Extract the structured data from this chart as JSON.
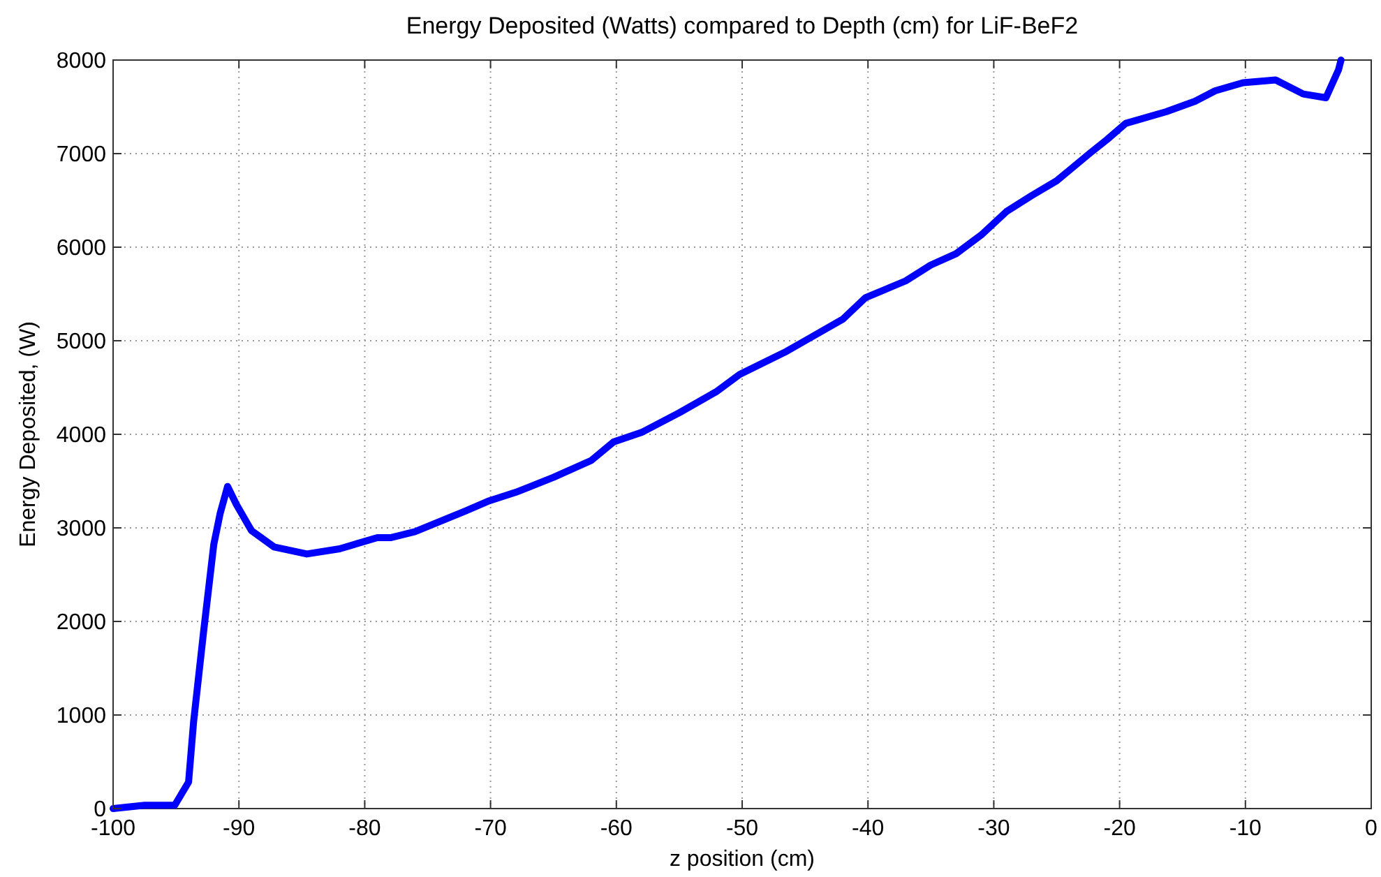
{
  "chart_data": {
    "type": "line",
    "title": "Energy Deposited (Watts) compared to Depth (cm) for LiF-BeF2",
    "xlabel": "z position (cm)",
    "ylabel": "Energy Deposited, (W)",
    "x": [
      -100,
      -97.5,
      -95.1,
      -94,
      -93.6,
      -92.8,
      -92,
      -91.5,
      -90.9,
      -90.2,
      -89,
      -87.2,
      -84.6,
      -82,
      -79,
      -77.9,
      -76,
      -74,
      -72,
      -70.1,
      -68,
      -65,
      -62,
      -60.2,
      -58,
      -55,
      -52,
      -50.2,
      -46.5,
      -45,
      -42,
      -40.2,
      -37,
      -35,
      -33,
      -31,
      -29,
      -27,
      -25,
      -22.4,
      -21,
      -19.5,
      -16.3,
      -14,
      -12.4,
      -10.2,
      -7.6,
      -5.4,
      -3.6,
      -2.6,
      -2.4
    ],
    "series": [
      {
        "color": "#0000ff",
        "values": [
          0,
          35,
          35,
          284,
          930,
          1900,
          2820,
          3150,
          3443,
          3250,
          2970,
          2796,
          2721,
          2776,
          2896,
          2896,
          2960,
          3070,
          3180,
          3290,
          3380,
          3540,
          3720,
          3920,
          4020,
          4230,
          4460,
          4640,
          4885,
          5000,
          5230,
          5460,
          5640,
          5810,
          5930,
          6130,
          6380,
          6550,
          6710,
          7000,
          7150,
          7324,
          7448,
          7560,
          7672,
          7757,
          7787,
          7637,
          7597,
          7896,
          8000
        ]
      }
    ],
    "xlim": [
      -100,
      0
    ],
    "xticks": [
      -100,
      -90,
      -80,
      -70,
      -60,
      -50,
      -40,
      -30,
      -20,
      -10,
      0
    ],
    "ylim": [
      0,
      8000
    ],
    "yticks": [
      0,
      1000,
      2000,
      3000,
      4000,
      5000,
      6000,
      7000,
      8000
    ],
    "grid": true,
    "marker": "none",
    "line_style": "solid"
  }
}
